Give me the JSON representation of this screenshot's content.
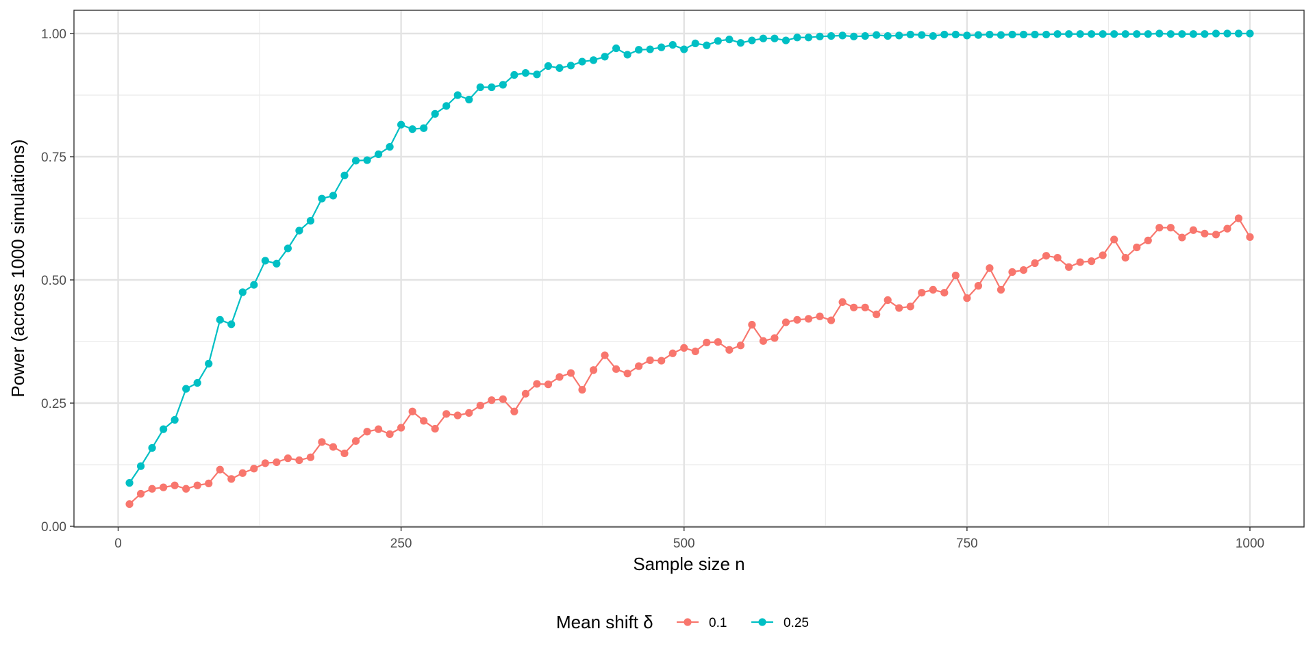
{
  "chart_data": {
    "type": "line",
    "xlabel": "Sample size n",
    "ylabel": "Power (across 1000 simulations)",
    "xlim": [
      -40,
      1050
    ],
    "ylim": [
      0,
      1.0
    ],
    "x_ticks": [
      0,
      250,
      500,
      750,
      1000
    ],
    "x_tick_labels": [
      "0",
      "250",
      "500",
      "750",
      "1000"
    ],
    "y_ticks": [
      0,
      0.25,
      0.5,
      0.75,
      1.0
    ],
    "y_tick_labels": [
      "0.00",
      "0.25",
      "0.50",
      "0.75",
      "1.00"
    ],
    "grid": true,
    "legend": {
      "title": "Mean shift δ",
      "position": "bottom"
    },
    "x": [
      10,
      20,
      30,
      40,
      50,
      60,
      70,
      80,
      90,
      100,
      110,
      120,
      130,
      140,
      150,
      160,
      170,
      180,
      190,
      200,
      210,
      220,
      230,
      240,
      250,
      260,
      270,
      280,
      290,
      300,
      310,
      320,
      330,
      340,
      350,
      360,
      370,
      380,
      390,
      400,
      410,
      420,
      430,
      440,
      450,
      460,
      470,
      480,
      490,
      500,
      510,
      520,
      530,
      540,
      550,
      560,
      570,
      580,
      590,
      600,
      610,
      620,
      630,
      640,
      650,
      660,
      670,
      680,
      690,
      700,
      710,
      720,
      730,
      740,
      750,
      760,
      770,
      780,
      790,
      800,
      810,
      820,
      830,
      840,
      850,
      860,
      870,
      880,
      890,
      900,
      910,
      920,
      930,
      940,
      950,
      960,
      970,
      980,
      990,
      1000
    ],
    "series": [
      {
        "name": "0.1",
        "color": "#F8766D",
        "values": [
          0.045,
          0.066,
          0.076,
          0.079,
          0.083,
          0.076,
          0.083,
          0.087,
          0.115,
          0.096,
          0.108,
          0.117,
          0.128,
          0.13,
          0.138,
          0.134,
          0.14,
          0.171,
          0.161,
          0.148,
          0.173,
          0.192,
          0.197,
          0.187,
          0.2,
          0.233,
          0.214,
          0.198,
          0.228,
          0.225,
          0.23,
          0.245,
          0.256,
          0.258,
          0.233,
          0.269,
          0.289,
          0.288,
          0.303,
          0.311,
          0.277,
          0.317,
          0.347,
          0.319,
          0.31,
          0.325,
          0.337,
          0.336,
          0.351,
          0.362,
          0.355,
          0.373,
          0.374,
          0.358,
          0.367,
          0.409,
          0.376,
          0.382,
          0.414,
          0.419,
          0.421,
          0.426,
          0.418,
          0.455,
          0.444,
          0.444,
          0.43,
          0.459,
          0.443,
          0.446,
          0.474,
          0.48,
          0.474,
          0.509,
          0.463,
          0.488,
          0.524,
          0.48,
          0.516,
          0.52,
          0.534,
          0.549,
          0.545,
          0.526,
          0.536,
          0.538,
          0.55,
          0.582,
          0.545,
          0.566,
          0.58,
          0.606,
          0.606,
          0.586,
          0.601,
          0.594,
          0.592,
          0.604,
          0.625,
          0.587
        ]
      },
      {
        "name": "0.25",
        "color": "#00BFC4",
        "values": [
          0.088,
          0.122,
          0.159,
          0.197,
          0.216,
          0.279,
          0.291,
          0.33,
          0.419,
          0.41,
          0.475,
          0.49,
          0.539,
          0.533,
          0.564,
          0.6,
          0.62,
          0.665,
          0.671,
          0.712,
          0.742,
          0.743,
          0.755,
          0.77,
          0.815,
          0.806,
          0.808,
          0.837,
          0.853,
          0.875,
          0.866,
          0.891,
          0.891,
          0.896,
          0.916,
          0.92,
          0.917,
          0.934,
          0.93,
          0.935,
          0.943,
          0.946,
          0.953,
          0.97,
          0.957,
          0.967,
          0.968,
          0.972,
          0.977,
          0.968,
          0.98,
          0.976,
          0.985,
          0.988,
          0.981,
          0.986,
          0.99,
          0.99,
          0.986,
          0.992,
          0.992,
          0.994,
          0.995,
          0.996,
          0.994,
          0.995,
          0.997,
          0.995,
          0.996,
          0.998,
          0.997,
          0.995,
          0.998,
          0.998,
          0.996,
          0.997,
          0.998,
          0.997,
          0.998,
          0.998,
          0.998,
          0.998,
          0.999,
          0.999,
          0.999,
          0.999,
          0.999,
          0.999,
          0.999,
          0.999,
          0.999,
          1.0,
          0.999,
          0.999,
          0.999,
          0.999,
          1.0,
          1.0,
          1.0,
          1.0
        ]
      }
    ]
  }
}
